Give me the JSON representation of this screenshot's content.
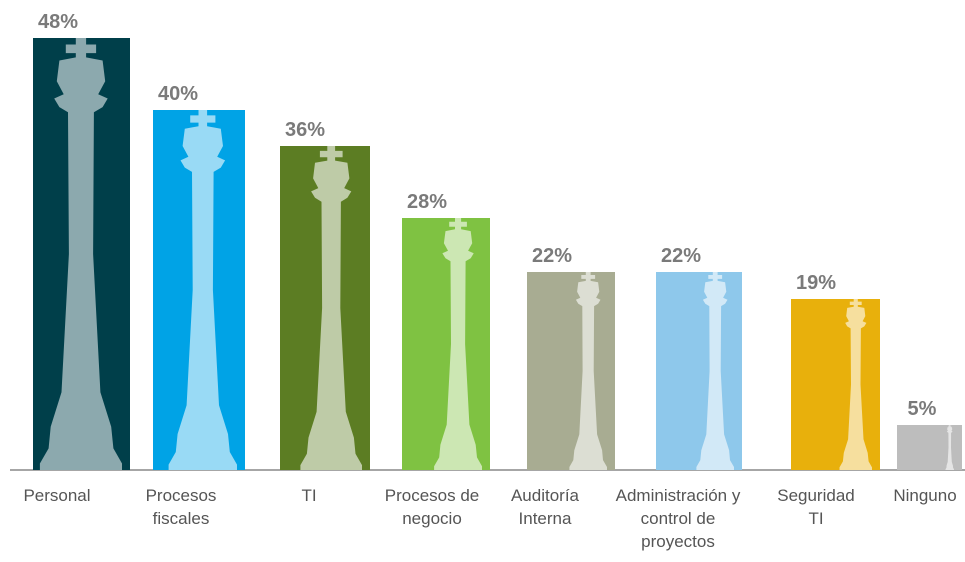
{
  "chart_data": {
    "type": "bar",
    "categories": [
      "Personal",
      "Procesos fiscales",
      "TI",
      "Procesos de negocio",
      "Auditoría Interna",
      "Administración y control de proyectos",
      "Seguridad TI",
      "Ninguno"
    ],
    "values": [
      48,
      40,
      36,
      28,
      22,
      22,
      19,
      5
    ],
    "value_labels": [
      "48%",
      "40%",
      "36%",
      "28%",
      "22%",
      "22%",
      "19%",
      "5%"
    ],
    "colors": [
      "#003f4a",
      "#00a3e6",
      "#5c7d23",
      "#7fc242",
      "#a8ac92",
      "#8ec8eb",
      "#e8b00c",
      "#bdbdbd"
    ]
  }
}
